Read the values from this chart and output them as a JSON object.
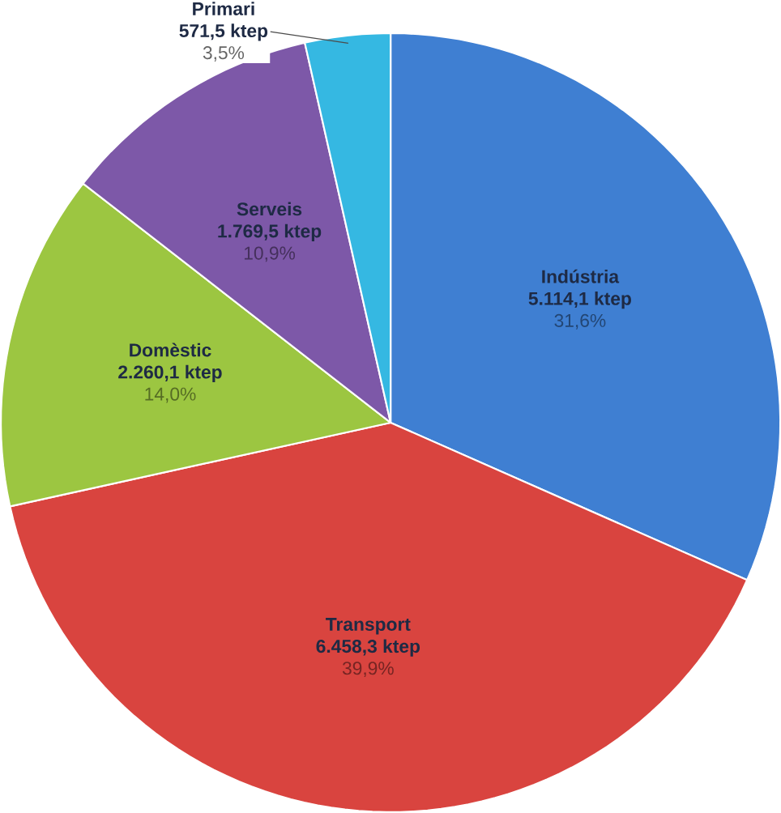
{
  "chart_data": {
    "type": "pie",
    "categories": [
      "Indústria",
      "Transport",
      "Domèstic",
      "Serveis",
      "Primari"
    ],
    "values": [
      5114.1,
      6458.3,
      2260.1,
      1769.5,
      571.5
    ],
    "colors": [
      "#3f7fd2",
      "#d9443f",
      "#9cc641",
      "#7d58a8",
      "#35b8e2"
    ],
    "value_labels": [
      "5.114,1 ktep",
      "6.458,3 ktep",
      "2.260,1 ktep",
      "1.769,5 ktep",
      "571,5 ktep"
    ],
    "annotations": [
      "31,6%",
      "39,9%",
      "14,0%",
      "10,9%",
      "3,5%"
    ]
  }
}
